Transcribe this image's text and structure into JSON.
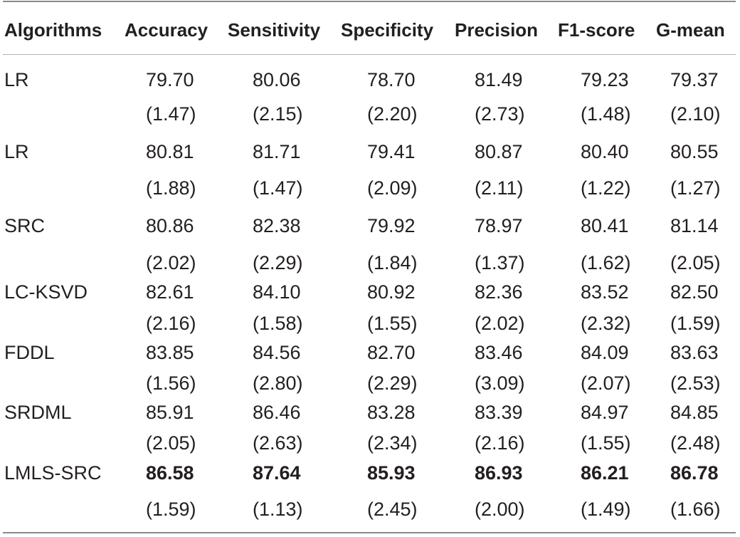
{
  "table": {
    "headers": [
      "Algorithms",
      "Accuracy",
      "Sensitivity",
      "Specificity",
      "Precision",
      "F1-score",
      "G-mean"
    ],
    "rows": [
      {
        "name": "LR",
        "values": [
          "79.70",
          "80.06",
          "78.70",
          "81.49",
          "79.23",
          "79.37"
        ],
        "sds": [
          "(1.47)",
          "(2.15)",
          "(2.20)",
          "(2.73)",
          "(1.48)",
          "(2.10)"
        ],
        "bold": false
      },
      {
        "name": "LR",
        "values": [
          "80.81",
          "81.71",
          "79.41",
          "80.87",
          "80.40",
          "80.55"
        ],
        "sds": [
          "(1.88)",
          "(1.47)",
          "(2.09)",
          "(2.11)",
          "(1.22)",
          "(1.27)"
        ],
        "bold": false
      },
      {
        "name": "SRC",
        "values": [
          "80.86",
          "82.38",
          "79.92",
          "78.97",
          "80.41",
          "81.14"
        ],
        "sds": [
          "(2.02)",
          "(2.29)",
          "(1.84)",
          "(1.37)",
          "(1.62)",
          "(2.05)"
        ],
        "bold": false
      },
      {
        "name": "LC-KSVD",
        "values": [
          "82.61",
          "84.10",
          "80.92",
          "82.36",
          "83.52",
          "82.50"
        ],
        "sds": [
          "(2.16)",
          "(1.58)",
          "(1.55)",
          "(2.02)",
          "(2.32)",
          "(1.59)"
        ],
        "bold": false
      },
      {
        "name": "FDDL",
        "values": [
          "83.85",
          "84.56",
          "82.70",
          "83.46",
          "84.09",
          "83.63"
        ],
        "sds": [
          "(1.56)",
          "(2.80)",
          "(2.29)",
          "(3.09)",
          "(2.07)",
          "(2.53)"
        ],
        "bold": false
      },
      {
        "name": "SRDML",
        "values": [
          "85.91",
          "86.46",
          "83.28",
          "83.39",
          "84.97",
          "84.85"
        ],
        "sds": [
          "(2.05)",
          "(2.63)",
          "(2.34)",
          "(2.16)",
          "(1.55)",
          "(2.48)"
        ],
        "bold": false
      },
      {
        "name": "LMLS-SRC",
        "values": [
          "86.58",
          "87.64",
          "85.93",
          "86.93",
          "86.21",
          "86.78"
        ],
        "sds": [
          "(1.59)",
          "(1.13)",
          "(2.45)",
          "(2.00)",
          "(1.49)",
          "(1.66)"
        ],
        "bold": true
      }
    ]
  }
}
